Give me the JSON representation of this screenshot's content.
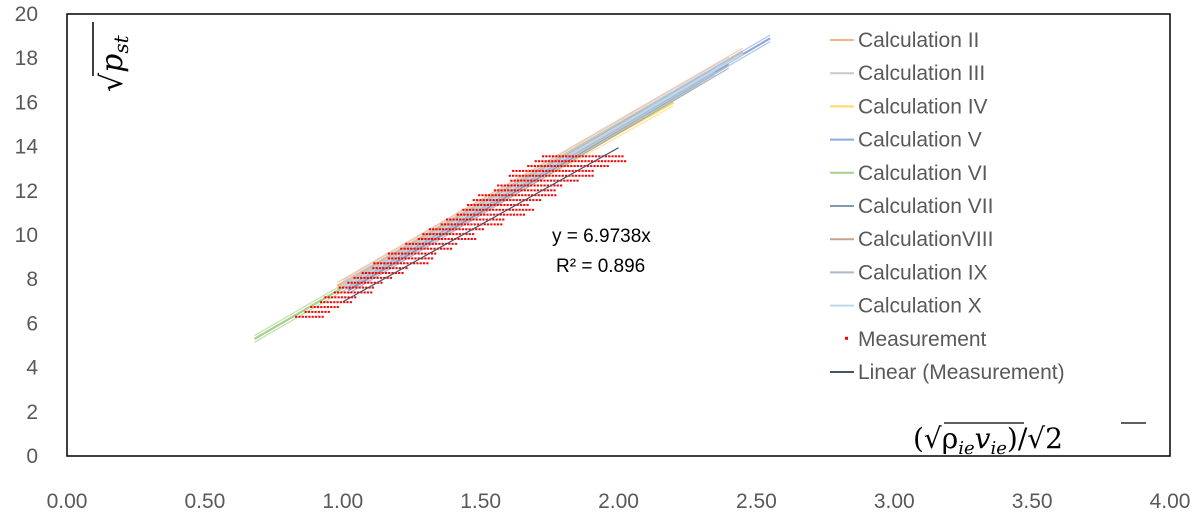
{
  "chart_data": {
    "type": "scatter",
    "title": "",
    "ylabel": "√p_st",
    "xlabel": "(√ρ_ie v_ie)/√2",
    "xlim": [
      0,
      4
    ],
    "ylim": [
      0,
      20
    ],
    "x_ticks": [
      "0.00",
      "0.50",
      "1.00",
      "1.50",
      "2.00",
      "2.50",
      "3.00",
      "3.50",
      "4.00"
    ],
    "y_ticks": [
      "0",
      "2",
      "4",
      "6",
      "8",
      "10",
      "12",
      "14",
      "16",
      "18",
      "20"
    ],
    "grid": false,
    "legend_position": "right",
    "series": [
      {
        "name": "Calculation II",
        "color": "#f4b183",
        "x": [
          0.98,
          2.45
        ],
        "y": [
          7.7,
          18.3
        ]
      },
      {
        "name": "Calculation III",
        "color": "#c9c9c9",
        "x": [
          1.0,
          2.4
        ],
        "y": [
          7.8,
          17.9
        ]
      },
      {
        "name": "Calculation IV",
        "color": "#ffd966",
        "x": [
          1.05,
          2.2
        ],
        "y": [
          8.0,
          16.0
        ]
      },
      {
        "name": "Calculation V",
        "color": "#8faadc",
        "x": [
          1.0,
          2.55
        ],
        "y": [
          7.6,
          18.9
        ]
      },
      {
        "name": "Calculation VI",
        "color": "#a9d18e",
        "x": [
          0.68,
          2.3
        ],
        "y": [
          5.3,
          17.0
        ]
      },
      {
        "name": "Calculation VII",
        "color": "#8497b0",
        "x": [
          1.02,
          2.4
        ],
        "y": [
          7.5,
          17.7
        ]
      },
      {
        "name": "CalculationVIII",
        "color": "#c5a48a",
        "x": [
          1.05,
          2.1
        ],
        "y": [
          8.0,
          15.6
        ]
      },
      {
        "name": "Calculation IX",
        "color": "#adb9ca",
        "x": [
          1.05,
          2.35
        ],
        "y": [
          7.8,
          17.4
        ]
      },
      {
        "name": "Calculation X",
        "color": "#bdd7ee",
        "x": [
          1.0,
          2.45
        ],
        "y": [
          7.6,
          18.2
        ]
      },
      {
        "name": "Measurement",
        "color": "#ff0000",
        "type": "scatter",
        "x_range": [
          1.0,
          1.9
        ],
        "y_range": [
          6.3,
          13.6
        ]
      },
      {
        "name": "Linear (Measurement)",
        "color": "#44546a",
        "type": "line",
        "slope": 6.9738,
        "x_range": [
          1.0,
          2.0
        ]
      }
    ],
    "annotations": [
      {
        "text": "y = 6.9738x"
      },
      {
        "text": "R² = 0.896"
      }
    ]
  }
}
